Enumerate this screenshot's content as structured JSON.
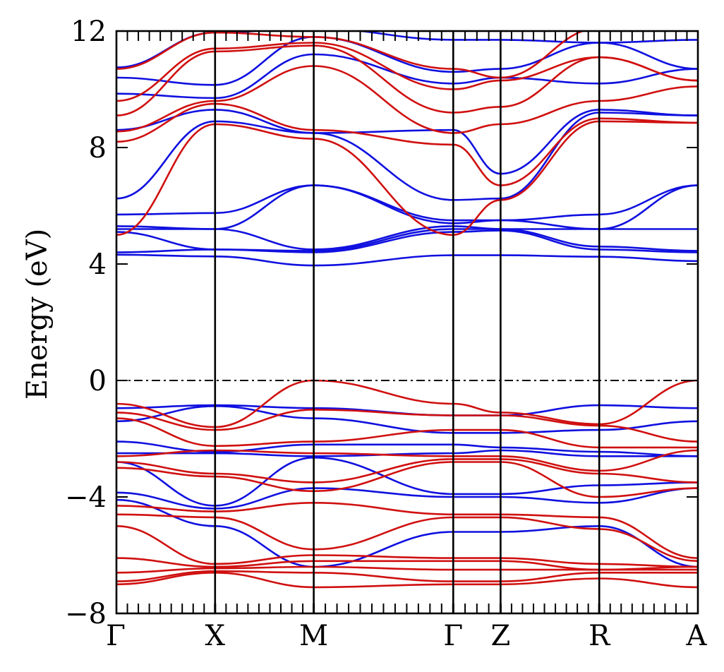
{
  "chart_data": {
    "type": "line",
    "ylabel": "Energy (eV)",
    "ylim": [
      -8,
      12
    ],
    "y_ticks": [
      {
        "value": -8,
        "label": "−8"
      },
      {
        "value": -4,
        "label": "−4"
      },
      {
        "value": 0,
        "label": "0"
      },
      {
        "value": 4,
        "label": "4"
      },
      {
        "value": 8,
        "label": "8"
      },
      {
        "value": 12,
        "label": "12"
      }
    ],
    "k_path": [
      "Γ",
      "X",
      "M",
      "Γ",
      "Z",
      "R",
      "A"
    ],
    "k_segment_lengths": [
      1.0,
      1.0,
      1.414,
      0.48,
      1.0,
      1.0
    ],
    "fermi_level": 0,
    "grid": false,
    "colors": {
      "blue": "#1010e0",
      "red": "#d01010",
      "frame": "#000000"
    },
    "band_groups": [
      {
        "color": "blue",
        "bands": [
          [
            4.32,
            4.26,
            3.95,
            4.3,
            4.3,
            4.25,
            4.1
          ],
          [
            4.4,
            4.5,
            4.4,
            5.1,
            5.15,
            4.5,
            4.4
          ],
          [
            5.1,
            4.5,
            4.45,
            5.2,
            5.2,
            4.6,
            4.45
          ],
          [
            5.2,
            5.2,
            4.5,
            5.3,
            5.2,
            5.2,
            5.2
          ],
          [
            5.3,
            5.2,
            6.7,
            5.4,
            5.5,
            5.2,
            6.7
          ],
          [
            5.7,
            5.75,
            6.7,
            5.5,
            5.5,
            5.7,
            6.7
          ],
          [
            6.25,
            8.9,
            8.5,
            6.2,
            6.25,
            9.2,
            9.1
          ],
          [
            8.6,
            9.3,
            8.5,
            8.6,
            7.1,
            9.3,
            9.1
          ],
          [
            9.85,
            9.7,
            11.2,
            10.2,
            10.4,
            10.2,
            10.7
          ],
          [
            10.4,
            10.15,
            11.8,
            10.6,
            10.7,
            11.6,
            10.7
          ],
          [
            10.75,
            11.95,
            12.1,
            11.7,
            11.7,
            11.6,
            11.7
          ],
          [
            -0.95,
            -0.85,
            -0.95,
            -1.2,
            -1.2,
            -0.85,
            -0.95
          ],
          [
            -1.4,
            -0.88,
            -1.3,
            -1.8,
            -1.8,
            -1.7,
            -1.4
          ],
          [
            -2.1,
            -2.45,
            -2.2,
            -2.2,
            -2.3,
            -2.45,
            -2.6
          ],
          [
            -2.5,
            -2.5,
            -2.6,
            -2.5,
            -2.4,
            -2.6,
            -2.6
          ],
          [
            -2.8,
            -4.3,
            -2.65,
            -3.9,
            -3.9,
            -3.6,
            -3.5
          ],
          [
            -3.85,
            -4.4,
            -3.7,
            -4.0,
            -4.0,
            -4.2,
            -3.7
          ],
          [
            -4.1,
            -5.0,
            -6.4,
            -5.2,
            -5.2,
            -5.0,
            -6.4
          ]
        ]
      },
      {
        "color": "red",
        "bands": [
          [
            5.0,
            8.8,
            8.3,
            5.0,
            6.2,
            8.9,
            8.85
          ],
          [
            8.2,
            9.5,
            8.6,
            8.1,
            6.7,
            9.0,
            8.85
          ],
          [
            8.55,
            9.6,
            10.8,
            8.5,
            8.8,
            9.6,
            10.1
          ],
          [
            9.1,
            11.3,
            11.5,
            9.2,
            9.4,
            11.1,
            10.3
          ],
          [
            9.6,
            11.4,
            11.6,
            10.0,
            10.3,
            11.1,
            10.3
          ],
          [
            10.7,
            11.95,
            11.8,
            10.7,
            10.4,
            12.1,
            12.1
          ],
          [
            -0.8,
            -1.6,
            0.0,
            -0.8,
            -1.1,
            -1.5,
            0.0
          ],
          [
            -1.1,
            -1.7,
            -1.0,
            -1.2,
            -1.2,
            -1.55,
            -2.1
          ],
          [
            -1.3,
            -2.25,
            -2.1,
            -1.7,
            -1.7,
            -2.3,
            -2.3
          ],
          [
            -2.6,
            -2.4,
            -2.5,
            -2.6,
            -2.6,
            -3.1,
            -2.4
          ],
          [
            -2.8,
            -3.2,
            -3.5,
            -2.7,
            -2.7,
            -3.2,
            -3.5
          ],
          [
            -3.0,
            -3.3,
            -3.8,
            -2.8,
            -2.8,
            -4.0,
            -3.7
          ],
          [
            -4.3,
            -4.5,
            -4.2,
            -4.6,
            -4.6,
            -4.7,
            -6.1
          ],
          [
            -4.6,
            -4.7,
            -5.8,
            -4.7,
            -4.7,
            -5.1,
            -6.2
          ],
          [
            -5.0,
            -6.3,
            -6.0,
            -6.1,
            -6.1,
            -6.3,
            -6.4
          ],
          [
            -6.1,
            -6.4,
            -6.2,
            -6.2,
            -6.2,
            -6.5,
            -6.4
          ],
          [
            -6.6,
            -6.45,
            -6.4,
            -6.5,
            -6.5,
            -6.5,
            -6.5
          ],
          [
            -6.9,
            -6.55,
            -6.6,
            -6.9,
            -6.9,
            -6.6,
            -6.6
          ],
          [
            -7.0,
            -6.6,
            -7.1,
            -7.0,
            -7.0,
            -6.8,
            -7.1
          ]
        ]
      }
    ]
  }
}
